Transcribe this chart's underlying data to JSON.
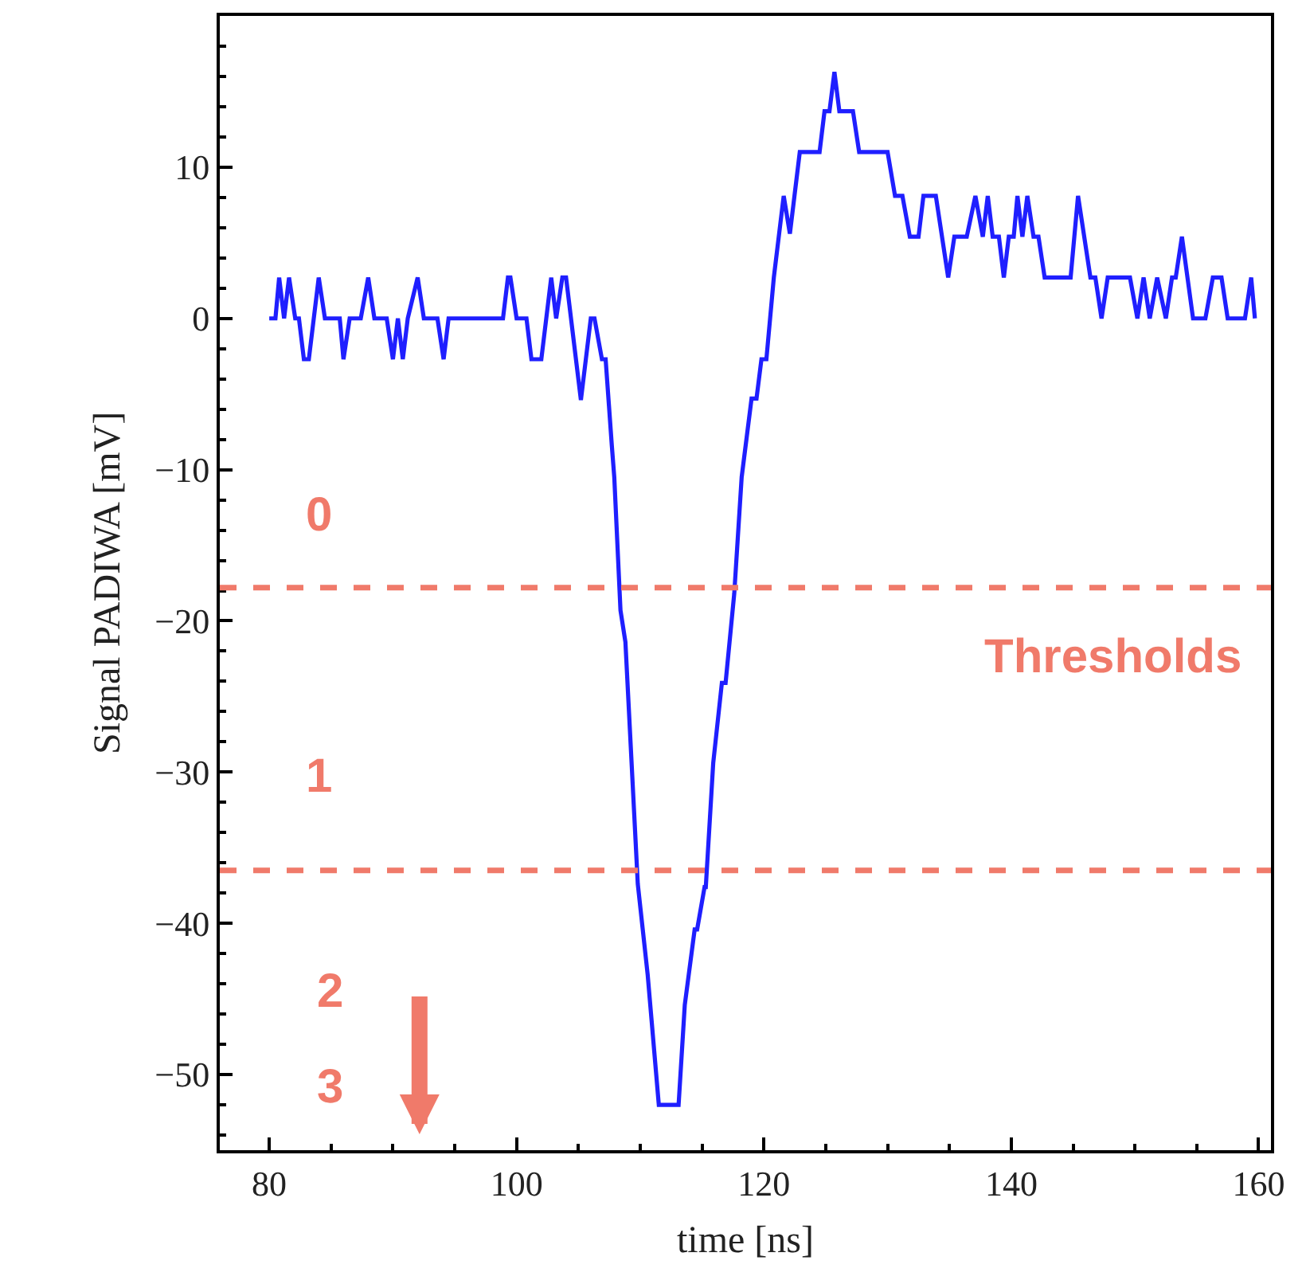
{
  "chart_data": {
    "type": "line",
    "xlabel": "time [ns]",
    "ylabel": "Signal PADIWA [mV]",
    "xlim": [
      76,
      161
    ],
    "ylim": [
      -55,
      20
    ],
    "xticks": [
      80,
      100,
      120,
      140,
      160
    ],
    "yticks": [
      -50,
      -40,
      -30,
      -20,
      -10,
      0,
      10
    ],
    "marker": "none",
    "line_style": "solid",
    "series": [
      {
        "color": "#1f1fff",
        "x": [
          80.0,
          80.5,
          80.8,
          81.2,
          81.6,
          82.1,
          82.4,
          82.8,
          83.2,
          84.0,
          84.5,
          85.7,
          86.0,
          86.5,
          87.4,
          88.0,
          88.5,
          89.5,
          90.0,
          90.4,
          90.8,
          91.2,
          92.0,
          92.5,
          93.6,
          94.1,
          94.5,
          98.9,
          99.3,
          99.5,
          100.0,
          100.8,
          101.2,
          102.0,
          102.8,
          103.2,
          103.7,
          104.0,
          105.2,
          106.0,
          106.3,
          106.9,
          107.2,
          107.7,
          107.9,
          108.4,
          108.8,
          109.8,
          110.6,
          111.5,
          113.1,
          113.6,
          114.4,
          114.6,
          115.2,
          115.3,
          115.9,
          116.6,
          116.9,
          117.6,
          118.2,
          119.0,
          119.4,
          119.8,
          120.2,
          120.8,
          121.6,
          122.1,
          122.9,
          124.5,
          124.9,
          125.3,
          125.7,
          126.1,
          127.2,
          127.7,
          130.0,
          130.6,
          131.2,
          131.8,
          132.5,
          132.9,
          133.9,
          134.9,
          135.4,
          136.4,
          137.1,
          137.7,
          138.1,
          138.5,
          139.0,
          139.4,
          139.8,
          140.2,
          140.5,
          140.9,
          141.3,
          141.8,
          142.2,
          142.7,
          144.8,
          145.4,
          146.4,
          146.8,
          147.3,
          147.8,
          149.6,
          150.2,
          150.7,
          151.2,
          151.8,
          152.5,
          153.0,
          153.3,
          153.8,
          154.7,
          155.7,
          156.3,
          157.0,
          157.5,
          158.9,
          159.4,
          159.7
        ],
        "values": [
          0,
          0,
          2.7,
          0,
          2.7,
          0,
          0,
          -2.7,
          -2.7,
          2.7,
          0,
          0,
          -2.7,
          0,
          0,
          2.7,
          0,
          0,
          -2.7,
          0,
          -2.7,
          0,
          2.7,
          0,
          0,
          -2.7,
          0,
          0,
          2.7,
          2.7,
          0,
          0,
          -2.7,
          -2.7,
          2.7,
          0,
          2.7,
          2.7,
          -5.4,
          0,
          0,
          -2.7,
          -2.7,
          -8.4,
          -10.5,
          -19.3,
          -21.4,
          -37.4,
          -43.4,
          -52,
          -52,
          -45.4,
          -40.4,
          -40.4,
          -37.6,
          -37.6,
          -29.4,
          -24.1,
          -24.1,
          -18.2,
          -10.5,
          -5.3,
          -5.3,
          -2.7,
          -2.7,
          2.7,
          8.1,
          5.6,
          11.0,
          11.0,
          13.7,
          13.7,
          16.3,
          13.7,
          13.7,
          11.0,
          11.0,
          8.1,
          8.1,
          5.4,
          5.4,
          8.1,
          8.1,
          2.7,
          5.4,
          5.4,
          8.1,
          5.4,
          8.1,
          5.4,
          5.4,
          2.7,
          5.4,
          5.4,
          8.1,
          5.4,
          8.1,
          5.4,
          5.4,
          2.7,
          2.7,
          8.1,
          2.7,
          2.7,
          0,
          2.7,
          2.7,
          0,
          2.7,
          0,
          2.7,
          0,
          2.7,
          2.7,
          5.4,
          0,
          0,
          2.7,
          2.7,
          0,
          0,
          2.7,
          0
        ]
      }
    ],
    "ref_lines": [
      {
        "axis": "y",
        "value": -17.8,
        "color": "#f07a6a",
        "line_style": "dashed"
      },
      {
        "axis": "y",
        "value": -36.5,
        "color": "#f07a6a",
        "line_style": "dashed"
      }
    ],
    "annotations": [
      "0",
      "1",
      "2",
      "3",
      "Thresholds"
    ]
  }
}
